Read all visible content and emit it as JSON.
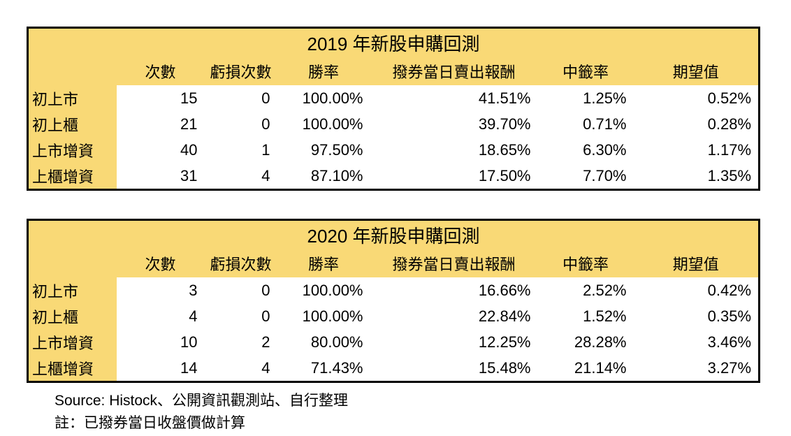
{
  "chart_data": [
    {
      "type": "table",
      "title": "2019 年新股申購回測",
      "columns": [
        "次數",
        "虧損次數",
        "勝率",
        "撥券當日賣出報酬",
        "中籤率",
        "期望值"
      ],
      "rows": [
        {
          "label": "初上市",
          "values": [
            "15",
            "0",
            "100.00%",
            "41.51%",
            "1.25%",
            "0.52%"
          ]
        },
        {
          "label": "初上櫃",
          "values": [
            "21",
            "0",
            "100.00%",
            "39.70%",
            "0.71%",
            "0.28%"
          ]
        },
        {
          "label": "上市增資",
          "values": [
            "40",
            "1",
            "97.50%",
            "18.65%",
            "6.30%",
            "1.17%"
          ]
        },
        {
          "label": "上櫃增資",
          "values": [
            "31",
            "4",
            "87.10%",
            "17.50%",
            "7.70%",
            "1.35%"
          ]
        }
      ]
    },
    {
      "type": "table",
      "title": "2020 年新股申購回測",
      "columns": [
        "次數",
        "虧損次數",
        "勝率",
        "撥券當日賣出報酬",
        "中籤率",
        "期望值"
      ],
      "rows": [
        {
          "label": "初上市",
          "values": [
            "3",
            "0",
            "100.00%",
            "16.66%",
            "2.52%",
            "0.42%"
          ]
        },
        {
          "label": "初上櫃",
          "values": [
            "4",
            "0",
            "100.00%",
            "22.84%",
            "1.52%",
            "0.35%"
          ]
        },
        {
          "label": "上市增資",
          "values": [
            "10",
            "2",
            "80.00%",
            "12.25%",
            "28.28%",
            "3.46%"
          ]
        },
        {
          "label": "上櫃增資",
          "values": [
            "14",
            "4",
            "71.43%",
            "15.48%",
            "21.14%",
            "3.27%"
          ]
        }
      ]
    }
  ],
  "footer": {
    "source": "Source: Histock、公開資訊觀測站、自行整理",
    "note": "註：已撥券當日收盤價做計算"
  },
  "colors": {
    "header_bg": "#F9D976",
    "cell_bg": "#FFFFFF",
    "border": "#000000",
    "text": "#000000"
  }
}
